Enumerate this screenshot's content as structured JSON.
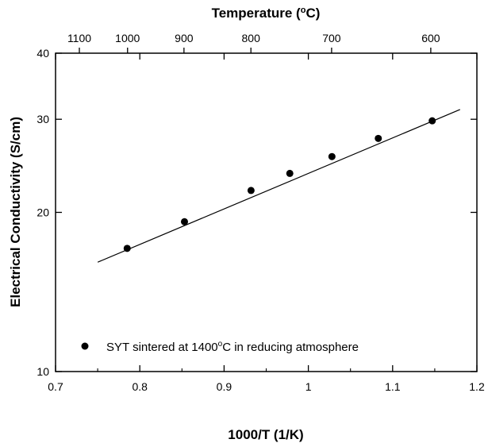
{
  "chart_data": {
    "type": "scatter",
    "x_axis": {
      "label": "1000/T (1/K)",
      "range": [
        0.7,
        1.2
      ],
      "ticks": [
        0.7,
        0.8,
        0.9,
        1.0,
        1.1,
        1.2
      ],
      "tick_labels": [
        "0.7",
        "0.8",
        "0.9",
        "1",
        "1.1",
        "1.2"
      ]
    },
    "top_axis": {
      "label_main": "Temperature (",
      "label_sup": "o",
      "label_end": "C)",
      "unit": "Celsius",
      "ticks": [
        1100,
        1000,
        900,
        800,
        700,
        600
      ],
      "tick_labels": [
        "1100",
        "1000",
        "900",
        "800",
        "700",
        "600"
      ]
    },
    "y_axis": {
      "label": "Electrical Conductivity (S/cm)",
      "scale": "log",
      "range": [
        10,
        40
      ],
      "ticks": [
        10,
        20,
        30,
        40
      ],
      "tick_labels": [
        "10",
        "20",
        "30",
        "40"
      ]
    },
    "series": [
      {
        "name_main": "SYT sintered at 1400",
        "name_sup": "o",
        "name_end": "C in reducing atmosphere",
        "marker": "filled-circle",
        "color": "#000000",
        "points": [
          {
            "x": 0.785,
            "y": 17.1
          },
          {
            "x": 0.853,
            "y": 19.2
          },
          {
            "x": 0.932,
            "y": 22.0
          },
          {
            "x": 0.978,
            "y": 23.7
          },
          {
            "x": 1.028,
            "y": 25.5
          },
          {
            "x": 1.083,
            "y": 27.6
          },
          {
            "x": 1.147,
            "y": 29.8
          }
        ]
      }
    ],
    "fit_line": {
      "style": "solid",
      "color": "#000000",
      "points": [
        {
          "x": 0.75,
          "y": 16.1
        },
        {
          "x": 1.18,
          "y": 31.3
        }
      ]
    },
    "grid": false,
    "legend_position": "lower-left"
  }
}
